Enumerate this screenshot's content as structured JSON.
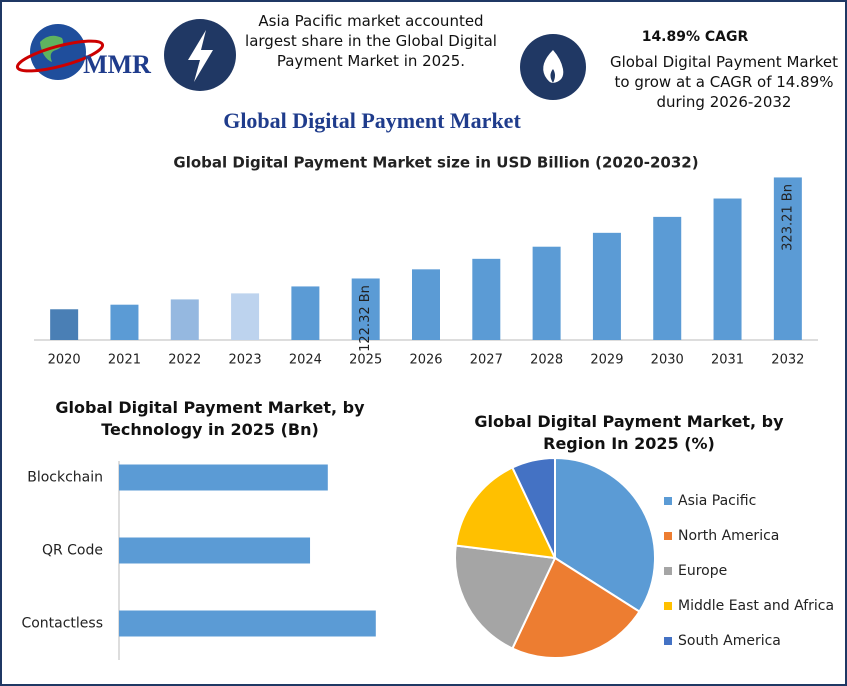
{
  "header": {
    "logo": "MMR",
    "note1": "Asia Pacific market accounted largest share in the Global Digital Payment Market in 2025.",
    "cagr": "14.89% CAGR",
    "note2": "Global Digital Payment Market to grow at a CAGR of 14.89% during 2026-2032",
    "title": "Global Digital Payment Market"
  },
  "chart_data": [
    {
      "type": "bar",
      "title": "Global Digital Payment Market size in USD Billion (2020-2032)",
      "categories": [
        "2020",
        "2021",
        "2022",
        "2023",
        "2024",
        "2025",
        "2026",
        "2027",
        "2028",
        "2029",
        "2030",
        "2031",
        "2032"
      ],
      "values": [
        61.1,
        70.2,
        80.7,
        92.7,
        106.5,
        122.32,
        140.5,
        161.4,
        185.5,
        213.1,
        244.8,
        281.3,
        323.21
      ],
      "value_labels": [
        null,
        null,
        null,
        null,
        null,
        "122.32 Bn",
        null,
        null,
        null,
        null,
        null,
        null,
        "323.21 Bn"
      ],
      "colors": [
        "#4a7fb5",
        "#5b9bd5",
        "#95b8e0",
        "#bdd3ee",
        "#5b9bd5",
        "#5b9bd5",
        "#5b9bd5",
        "#5b9bd5",
        "#5b9bd5",
        "#5b9bd5",
        "#5b9bd5",
        "#5b9bd5",
        "#5b9bd5"
      ],
      "ylim": [
        0,
        340
      ]
    },
    {
      "type": "hbar",
      "title": "Global Digital Payment Market, by Technology in 2025 (Bn)",
      "categories": [
        "Blockchain",
        "QR Code",
        "Contactless"
      ],
      "values": [
        43.5,
        39.8,
        53.5
      ],
      "color": "#5b9bd5",
      "xlim": [
        0,
        60
      ]
    },
    {
      "type": "pie",
      "title": "Global Digital Payment Market, by Region In 2025 (%)",
      "categories": [
        "Asia Pacific",
        "North America",
        "Europe",
        "Middle East and Africa",
        "South America"
      ],
      "values": [
        34,
        23,
        20,
        16,
        7
      ],
      "colors": [
        "#5b9bd5",
        "#ed7d31",
        "#a5a5a5",
        "#ffc000",
        "#4472c4"
      ],
      "legend": "right"
    }
  ]
}
